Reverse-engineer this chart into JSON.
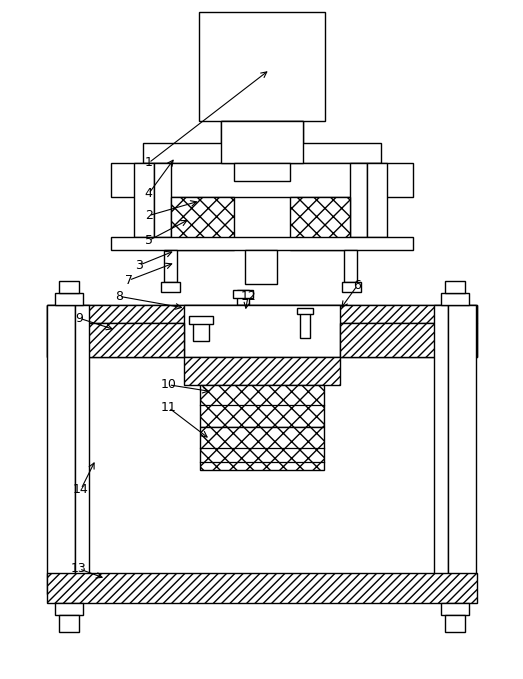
{
  "bg_color": "#ffffff",
  "line_color": "#000000",
  "figsize": [
    5.23,
    6.79
  ],
  "dpi": 100
}
